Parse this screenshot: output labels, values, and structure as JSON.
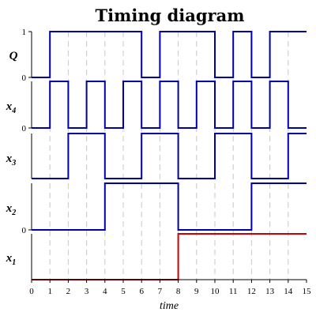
{
  "chart_data": {
    "type": "line",
    "title": "Timing diagram",
    "xlabel": "time",
    "x_range": [
      0,
      15
    ],
    "x_ticks": [
      0,
      1,
      2,
      3,
      4,
      5,
      6,
      7,
      8,
      9,
      10,
      11,
      12,
      13,
      14,
      15
    ],
    "grid": true,
    "level_labels": {
      "low": "0",
      "high": "1"
    },
    "signals": [
      {
        "label": "Q",
        "color": "#0000aa",
        "level_labels_shown": [
          "low",
          "high"
        ],
        "transitions": [
          {
            "t": 0,
            "v": 0
          },
          {
            "t": 1,
            "v": 1
          },
          {
            "t": 6,
            "v": 0
          },
          {
            "t": 7,
            "v": 1
          },
          {
            "t": 10,
            "v": 0
          },
          {
            "t": 11,
            "v": 1
          },
          {
            "t": 12,
            "v": 0
          },
          {
            "t": 13,
            "v": 1
          }
        ]
      },
      {
        "label": "x",
        "subscript": "4",
        "color": "#0000aa",
        "level_labels_shown": [
          "low"
        ],
        "transitions": [
          {
            "t": 0,
            "v": 0
          },
          {
            "t": 1,
            "v": 1
          },
          {
            "t": 2,
            "v": 0
          },
          {
            "t": 3,
            "v": 1
          },
          {
            "t": 4,
            "v": 0
          },
          {
            "t": 5,
            "v": 1
          },
          {
            "t": 6,
            "v": 0
          },
          {
            "t": 7,
            "v": 1
          },
          {
            "t": 8,
            "v": 0
          },
          {
            "t": 9,
            "v": 1
          },
          {
            "t": 10,
            "v": 0
          },
          {
            "t": 11,
            "v": 1
          },
          {
            "t": 12,
            "v": 0
          },
          {
            "t": 13,
            "v": 1
          },
          {
            "t": 14,
            "v": 0
          }
        ]
      },
      {
        "label": "x",
        "subscript": "3",
        "color": "#0000aa",
        "level_labels_shown": [],
        "transitions": [
          {
            "t": 0,
            "v": 0
          },
          {
            "t": 2,
            "v": 1
          },
          {
            "t": 4,
            "v": 0
          },
          {
            "t": 6,
            "v": 1
          },
          {
            "t": 8,
            "v": 0
          },
          {
            "t": 10,
            "v": 1
          },
          {
            "t": 12,
            "v": 0
          },
          {
            "t": 14,
            "v": 1
          }
        ]
      },
      {
        "label": "x",
        "subscript": "2",
        "color": "#0000aa",
        "level_labels_shown": [
          "low"
        ],
        "transitions": [
          {
            "t": 0,
            "v": 0
          },
          {
            "t": 4,
            "v": 1
          },
          {
            "t": 8,
            "v": 0
          },
          {
            "t": 12,
            "v": 1
          }
        ]
      },
      {
        "label": "x",
        "subscript": "1",
        "color": "#cc0000",
        "level_labels_shown": [],
        "transitions": [
          {
            "t": 0,
            "v": 0
          },
          {
            "t": 8,
            "v": 1
          }
        ]
      }
    ]
  }
}
